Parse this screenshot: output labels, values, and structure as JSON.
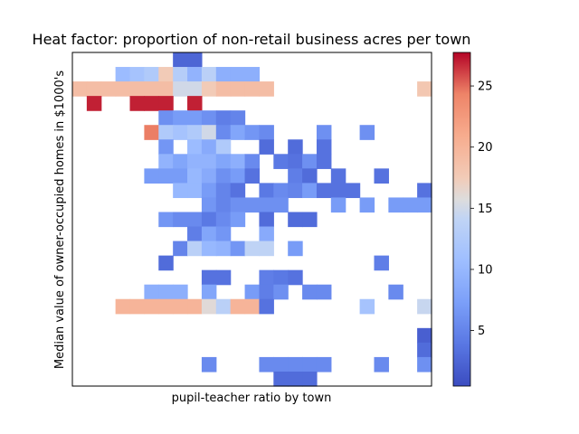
{
  "chart_data": {
    "type": "heatmap",
    "title": "Heat factor: proportion of non-retail business acres per town",
    "xlabel": "pupil-teacher ratio by town",
    "ylabel": "Median value of owner-occupied homes in $1000's",
    "xticks_shown": false,
    "yticks_shown": false,
    "n_cols": 25,
    "n_rows": 23,
    "color_scale": {
      "colormap": "coolwarm",
      "vmin": 0.46,
      "vmax": 27.74,
      "ticks": [
        5,
        10,
        15,
        20,
        25
      ],
      "tick_labels": [
        "5",
        "10",
        "15",
        "20",
        "25"
      ]
    },
    "cells_note": "rows listed top to bottom; each cell is [column index, heat value]",
    "cells": [
      [
        [
          7,
          2.5
        ],
        [
          8,
          2.5
        ]
      ],
      [
        [
          3,
          10.5
        ],
        [
          4,
          11.5
        ],
        [
          5,
          12.5
        ],
        [
          6,
          17.5
        ],
        [
          7,
          13.0
        ],
        [
          8,
          9.5
        ],
        [
          9,
          13.5
        ],
        [
          10,
          9.0
        ],
        [
          11,
          9.0
        ],
        [
          12,
          9.0
        ]
      ],
      [
        [
          0,
          19.0
        ],
        [
          1,
          19.0
        ],
        [
          2,
          19.0
        ],
        [
          3,
          19.0
        ],
        [
          4,
          19.0
        ],
        [
          5,
          19.0
        ],
        [
          6,
          19.0
        ],
        [
          7,
          15.0
        ],
        [
          8,
          15.0
        ],
        [
          9,
          17.5
        ],
        [
          10,
          19.0
        ],
        [
          11,
          19.0
        ],
        [
          12,
          19.0
        ],
        [
          13,
          19.0
        ],
        [
          24,
          18.0
        ]
      ],
      [
        [
          1,
          27.0
        ],
        [
          4,
          27.0
        ],
        [
          5,
          27.0
        ],
        [
          6,
          27.0
        ],
        [
          8,
          27.0
        ]
      ],
      [
        [
          6,
          6.0
        ],
        [
          7,
          7.0
        ],
        [
          8,
          7.0
        ],
        [
          9,
          6.0
        ],
        [
          10,
          4.5
        ],
        [
          11,
          5.0
        ]
      ],
      [
        [
          5,
          24.5
        ],
        [
          6,
          12.5
        ],
        [
          7,
          11.5
        ],
        [
          8,
          12.5
        ],
        [
          9,
          15.0
        ],
        [
          10,
          5.5
        ],
        [
          11,
          8.0
        ],
        [
          12,
          6.5
        ],
        [
          13,
          5.5
        ],
        [
          17,
          6.0
        ],
        [
          20,
          6.0
        ]
      ],
      [
        [
          6,
          6.5
        ],
        [
          8,
          10.5
        ],
        [
          9,
          8.5
        ],
        [
          10,
          12.5
        ],
        [
          13,
          3.0
        ],
        [
          15,
          3.0
        ],
        [
          17,
          3.5
        ]
      ],
      [
        [
          6,
          9.5
        ],
        [
          7,
          8.0
        ],
        [
          8,
          9.5
        ],
        [
          9,
          9.5
        ],
        [
          10,
          8.0
        ],
        [
          11,
          9.0
        ],
        [
          12,
          5.5
        ],
        [
          14,
          4.0
        ],
        [
          15,
          3.5
        ],
        [
          16,
          6.0
        ],
        [
          17,
          3.5
        ]
      ],
      [
        [
          5,
          7.0
        ],
        [
          6,
          7.0
        ],
        [
          7,
          7.0
        ],
        [
          8,
          10.0
        ],
        [
          9,
          8.5
        ],
        [
          10,
          6.0
        ],
        [
          11,
          7.0
        ],
        [
          12,
          3.5
        ],
        [
          15,
          4.5
        ],
        [
          16,
          3.0
        ],
        [
          18,
          3.5
        ],
        [
          21,
          3.5
        ]
      ],
      [
        [
          7,
          10.0
        ],
        [
          8,
          10.0
        ],
        [
          9,
          7.0
        ],
        [
          10,
          5.0
        ],
        [
          11,
          3.5
        ],
        [
          13,
          4.0
        ],
        [
          14,
          5.5
        ],
        [
          15,
          5.0
        ],
        [
          16,
          7.0
        ],
        [
          17,
          3.5
        ],
        [
          18,
          3.5
        ],
        [
          19,
          3.5
        ],
        [
          24,
          3.5
        ]
      ],
      [
        [
          9,
          6.5
        ],
        [
          10,
          5.0
        ],
        [
          11,
          6.0
        ],
        [
          12,
          6.0
        ],
        [
          13,
          6.0
        ],
        [
          14,
          6.0
        ],
        [
          18,
          7.0
        ],
        [
          20,
          7.0
        ],
        [
          22,
          7.0
        ],
        [
          23,
          7.0
        ],
        [
          24,
          7.0
        ]
      ],
      [
        [
          6,
          6.5
        ],
        [
          7,
          5.5
        ],
        [
          8,
          5.5
        ],
        [
          9,
          4.0
        ],
        [
          10,
          5.5
        ],
        [
          11,
          7.0
        ],
        [
          13,
          3.0
        ],
        [
          15,
          3.0
        ],
        [
          16,
          3.0
        ]
      ],
      [
        [
          8,
          4.5
        ],
        [
          9,
          8.0
        ],
        [
          10,
          6.5
        ],
        [
          13,
          8.5
        ]
      ],
      [
        [
          7,
          5.0
        ],
        [
          8,
          13.5
        ],
        [
          9,
          10.0
        ],
        [
          10,
          9.5
        ],
        [
          11,
          6.5
        ],
        [
          12,
          14.0
        ],
        [
          13,
          14.0
        ],
        [
          15,
          7.0
        ]
      ],
      [
        [
          6,
          3.0
        ],
        [
          21,
          4.5
        ]
      ],
      [
        [
          9,
          3.5
        ],
        [
          10,
          3.5
        ],
        [
          13,
          4.5
        ],
        [
          14,
          4.0
        ],
        [
          15,
          3.5
        ]
      ],
      [
        [
          5,
          9.0
        ],
        [
          6,
          9.0
        ],
        [
          7,
          9.0
        ],
        [
          9,
          8.0
        ],
        [
          12,
          7.0
        ],
        [
          13,
          4.5
        ],
        [
          14,
          6.0
        ],
        [
          16,
          5.5
        ],
        [
          17,
          5.5
        ],
        [
          22,
          5.5
        ]
      ],
      [
        [
          3,
          20.0
        ],
        [
          4,
          20.0
        ],
        [
          5,
          20.0
        ],
        [
          6,
          20.0
        ],
        [
          7,
          20.0
        ],
        [
          8,
          20.0
        ],
        [
          9,
          16.0
        ],
        [
          10,
          13.5
        ],
        [
          11,
          20.0
        ],
        [
          12,
          20.0
        ],
        [
          13,
          3.5
        ],
        [
          20,
          11.5
        ],
        [
          24,
          14.5
        ]
      ],
      [],
      [
        [
          24,
          2.0
        ]
      ],
      [
        [
          24,
          3.0
        ]
      ],
      [
        [
          9,
          5.5
        ],
        [
          13,
          5.5
        ],
        [
          14,
          5.5
        ],
        [
          15,
          5.5
        ],
        [
          16,
          5.5
        ],
        [
          17,
          5.5
        ],
        [
          21,
          5.5
        ],
        [
          24,
          6.0
        ]
      ],
      [
        [
          14,
          3.0
        ],
        [
          15,
          3.0
        ],
        [
          16,
          3.0
        ]
      ]
    ]
  }
}
